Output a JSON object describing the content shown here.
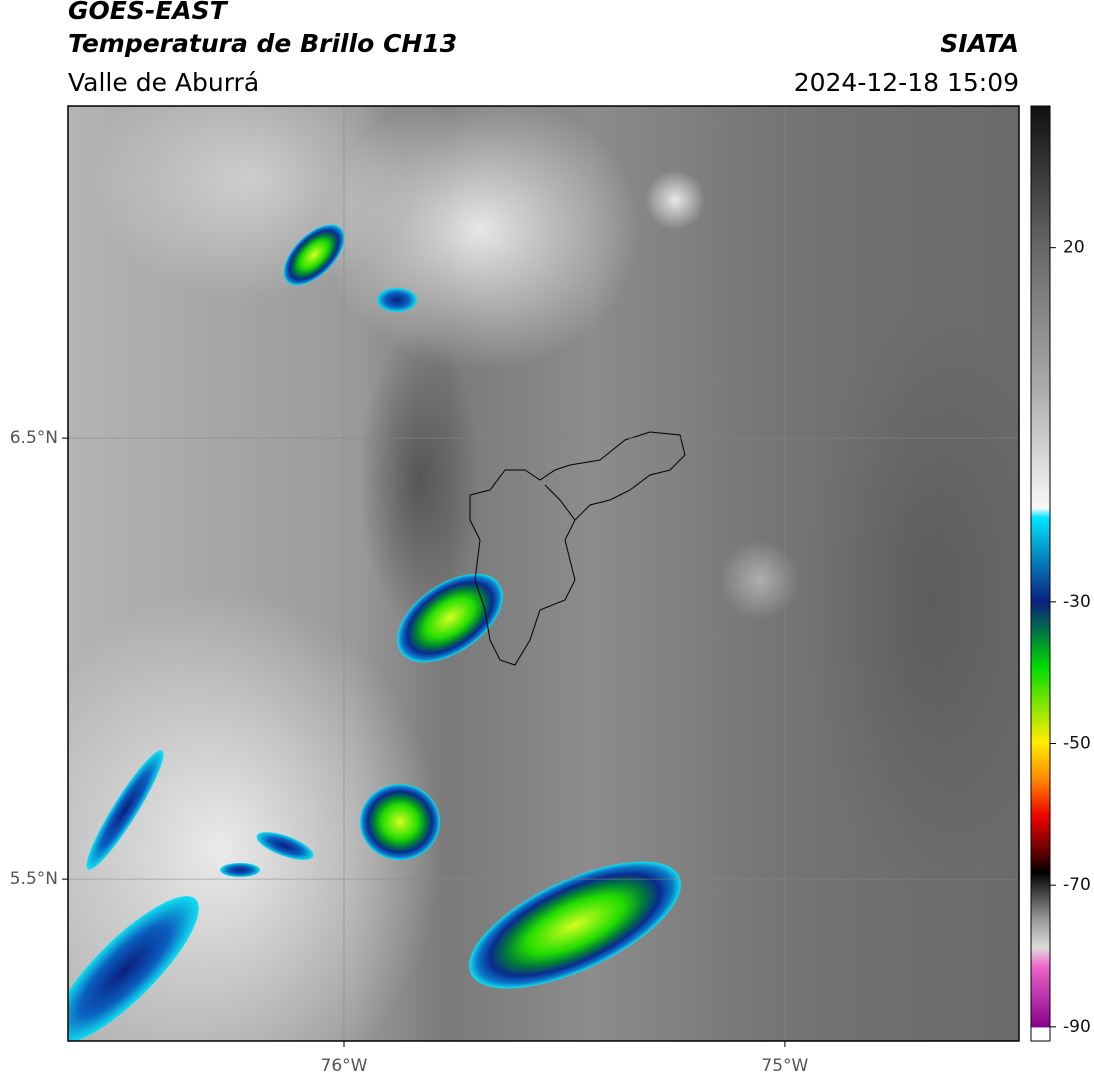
{
  "chart_data": {
    "type": "map",
    "title": "GOES-EAST",
    "subtitle": "Temperatura de Brillo CH13",
    "region": "Valle de Aburrá",
    "source": "SIATA",
    "timestamp": "2024-12-18 15:09",
    "xlim": [
      -76.626,
      -74.469
    ],
    "ylim": [
      5.133,
      7.253
    ],
    "xticks": [
      {
        "value": -76,
        "label": "76°W"
      },
      {
        "value": -75,
        "label": "75°W"
      }
    ],
    "yticks": [
      {
        "value": 6.5,
        "label": "6.5°N"
      },
      {
        "value": 5.5,
        "label": "5.5°N"
      }
    ],
    "grid": true,
    "colorbar_lim": [
      -92,
      40
    ],
    "colorbar_ticks": [
      20,
      -30,
      -50,
      -70,
      -90
    ]
  }
}
